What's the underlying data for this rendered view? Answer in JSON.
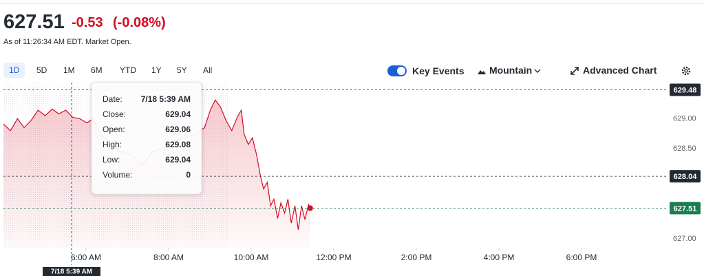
{
  "header": {
    "price": "627.51",
    "change": "-0.53",
    "change_percent": "(-0.08%)",
    "as_of": "As of 11:26:34 AM EDT. Market Open."
  },
  "ranges": [
    "1D",
    "5D",
    "1M",
    "6M",
    "YTD",
    "1Y",
    "5Y",
    "All"
  ],
  "selected_range": 0,
  "controls": {
    "key_events": "Key Events",
    "key_events_on": true,
    "chart_style": "Mountain",
    "advanced": "Advanced Chart"
  },
  "tooltip": {
    "rows": [
      {
        "label": "Date:",
        "value": "7/18 5:39 AM"
      },
      {
        "label": "Close:",
        "value": "629.04"
      },
      {
        "label": "Open:",
        "value": "629.06"
      },
      {
        "label": "High:",
        "value": "629.08"
      },
      {
        "label": "Low:",
        "value": "629.04"
      },
      {
        "label": "Volume:",
        "value": "0"
      }
    ]
  },
  "chart_data": {
    "type": "area",
    "color": "#d60a22",
    "x": [
      4.0,
      4.17,
      4.34,
      4.5,
      4.67,
      4.84,
      5.01,
      5.18,
      5.34,
      5.51,
      5.68,
      5.85,
      6.02,
      6.18,
      6.35,
      6.61,
      6.86,
      7.11,
      7.36,
      7.61,
      7.87,
      8.12,
      8.37,
      8.62,
      8.87,
      9.01,
      9.13,
      9.26,
      9.39,
      9.53,
      9.66,
      9.76,
      9.83,
      9.93,
      10.03,
      10.13,
      10.22,
      10.3,
      10.39,
      10.47,
      10.55,
      10.64,
      10.72,
      10.81,
      10.89,
      10.97,
      11.06,
      11.14,
      11.22,
      11.3,
      11.39,
      11.43
    ],
    "values": [
      628.91,
      628.8,
      629.0,
      628.85,
      628.97,
      629.14,
      629.05,
      629.16,
      629.08,
      629.14,
      629.02,
      629.0,
      628.93,
      629.0,
      628.74,
      628.57,
      628.45,
      628.4,
      628.23,
      628.45,
      628.51,
      628.63,
      628.68,
      628.74,
      628.85,
      629.14,
      629.31,
      629.19,
      628.97,
      628.8,
      629.02,
      629.14,
      628.74,
      628.57,
      628.68,
      628.4,
      628.06,
      627.83,
      627.94,
      627.55,
      627.66,
      627.34,
      627.6,
      627.43,
      627.66,
      627.26,
      627.55,
      627.15,
      627.55,
      627.32,
      627.57,
      627.51
    ],
    "xlim": [
      4,
      20
    ],
    "xticks": [
      {
        "value": 6,
        "label": "6:00 AM"
      },
      {
        "value": 8,
        "label": "8:00 AM"
      },
      {
        "value": 10,
        "label": "10:00 AM"
      },
      {
        "value": 12,
        "label": "12:00 PM"
      },
      {
        "value": 14,
        "label": "2:00 PM"
      },
      {
        "value": 16,
        "label": "4:00 PM"
      },
      {
        "value": 18,
        "label": "6:00 PM"
      }
    ],
    "ylim": [
      626.85,
      629.6
    ],
    "yticks": [
      {
        "value": 627,
        "label": "627.00"
      },
      {
        "value": 628.5,
        "label": "628.50"
      },
      {
        "value": 629,
        "label": "629.00"
      }
    ],
    "grid": true,
    "reference_lines": [
      {
        "value": 629.48,
        "color": "#232a31"
      },
      {
        "value": 628.04,
        "color": "#232a31"
      },
      {
        "value": 627.51,
        "color": "#1a7f4b"
      }
    ],
    "crosshair": {
      "x": 5.65,
      "label": "7/18 5:39 AM"
    }
  }
}
